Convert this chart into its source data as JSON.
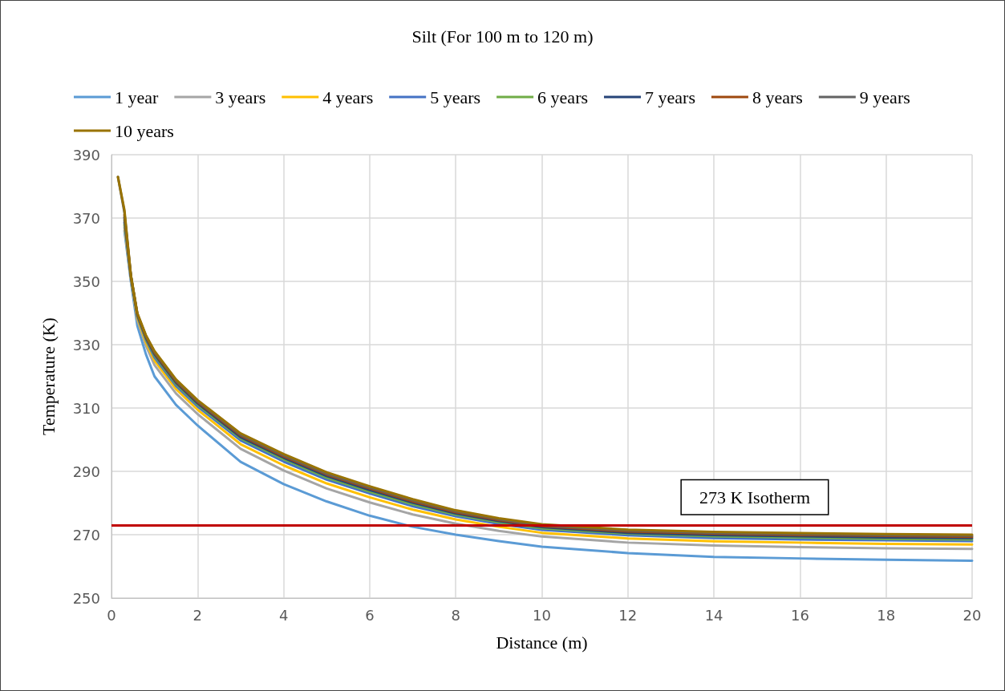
{
  "chart_data": {
    "type": "line",
    "title": "Silt (For 100 m to 120 m)",
    "xlabel": "Distance (m)",
    "ylabel": "Temperature (K)",
    "x": [
      0.15,
      0.3,
      0.45,
      0.6,
      0.8,
      1,
      1.5,
      2,
      3,
      4,
      5,
      6,
      7,
      8,
      9,
      10,
      12,
      14,
      16,
      18,
      20
    ],
    "series": [
      {
        "name": "1 year",
        "color": "#5b9bd5",
        "values": [
          null,
          366,
          350,
          336,
          327,
          320,
          311,
          304.5,
          293,
          286,
          280.5,
          276,
          272.5,
          270,
          268,
          266.2,
          264.2,
          263,
          262.5,
          262.1,
          261.8
        ]
      },
      {
        "name": "3 years",
        "color": "#a5a5a5",
        "values": [
          null,
          367,
          350.9,
          337.8,
          329.7,
          323.6,
          314.6,
          308.1,
          297.1,
          290.3,
          284.6,
          280.2,
          276.4,
          273.5,
          271.2,
          269.4,
          267.5,
          266.6,
          266.1,
          265.7,
          265.5
        ]
      },
      {
        "name": "4 years",
        "color": "#ffc000",
        "values": [
          null,
          367.8,
          351.2,
          338.5,
          330.7,
          325,
          316,
          309.5,
          298.6,
          291.9,
          286.2,
          281.8,
          277.9,
          274.8,
          272.5,
          270.6,
          268.8,
          267.9,
          267.5,
          267.1,
          266.9
        ]
      },
      {
        "name": "5 years",
        "color": "#4472c4",
        "values": [
          null,
          368.6,
          351.5,
          339,
          331.5,
          326,
          317,
          310.5,
          299.8,
          293.1,
          287.4,
          283,
          279,
          275.8,
          273.4,
          271.5,
          269.8,
          268.9,
          268.5,
          268.2,
          268
        ]
      },
      {
        "name": "6 years",
        "color": "#70ad47",
        "values": [
          null,
          369.4,
          351.6,
          339.3,
          331.9,
          326.6,
          317.6,
          311.1,
          300.4,
          293.8,
          288,
          283.6,
          279.6,
          276.3,
          273.9,
          272,
          270.3,
          269.5,
          269.1,
          268.7,
          268.5
        ]
      },
      {
        "name": "7 years",
        "color": "#264478",
        "values": [
          null,
          370.2,
          351.7,
          339.5,
          332.2,
          327,
          318,
          311.5,
          300.8,
          294.3,
          288.5,
          284.1,
          280.1,
          276.7,
          274.3,
          272.4,
          270.6,
          269.9,
          269.5,
          269.1,
          268.9
        ]
      },
      {
        "name": "8 years",
        "color": "#9e480e",
        "values": [
          null,
          371,
          351.8,
          339.7,
          332.5,
          327.4,
          318.4,
          311.9,
          301.3,
          294.7,
          289,
          284.6,
          280.5,
          277.1,
          274.6,
          272.7,
          271,
          270.3,
          269.9,
          269.6,
          269.3
        ]
      },
      {
        "name": "9 years",
        "color": "#636363",
        "values": [
          383,
          371.8,
          351.9,
          339.8,
          332.8,
          327.7,
          318.7,
          312.2,
          301.6,
          295.1,
          289.3,
          284.9,
          280.9,
          277.4,
          274.9,
          273,
          271.3,
          270.6,
          270.2,
          269.9,
          269.7
        ]
      },
      {
        "name": "10 years",
        "color": "#997300",
        "values": [
          383,
          372.6,
          352,
          340,
          333,
          328,
          319,
          312.5,
          302,
          295.5,
          289.7,
          285.3,
          281.2,
          277.7,
          275.2,
          273.3,
          271.6,
          270.9,
          270.5,
          270.2,
          270
        ]
      }
    ],
    "xlim": [
      0,
      20
    ],
    "xticks": [
      0,
      2,
      4,
      6,
      8,
      10,
      12,
      14,
      16,
      18,
      20
    ],
    "ylim": [
      250,
      390
    ],
    "yticks": [
      250,
      270,
      290,
      310,
      330,
      350,
      370,
      390
    ],
    "ref_lines": [
      {
        "axis": "y",
        "value": 273,
        "label": "273 K Isotherm",
        "color": "#c00000"
      }
    ],
    "grid": true,
    "legend": "top",
    "marker": "none",
    "line_style": "solid"
  }
}
